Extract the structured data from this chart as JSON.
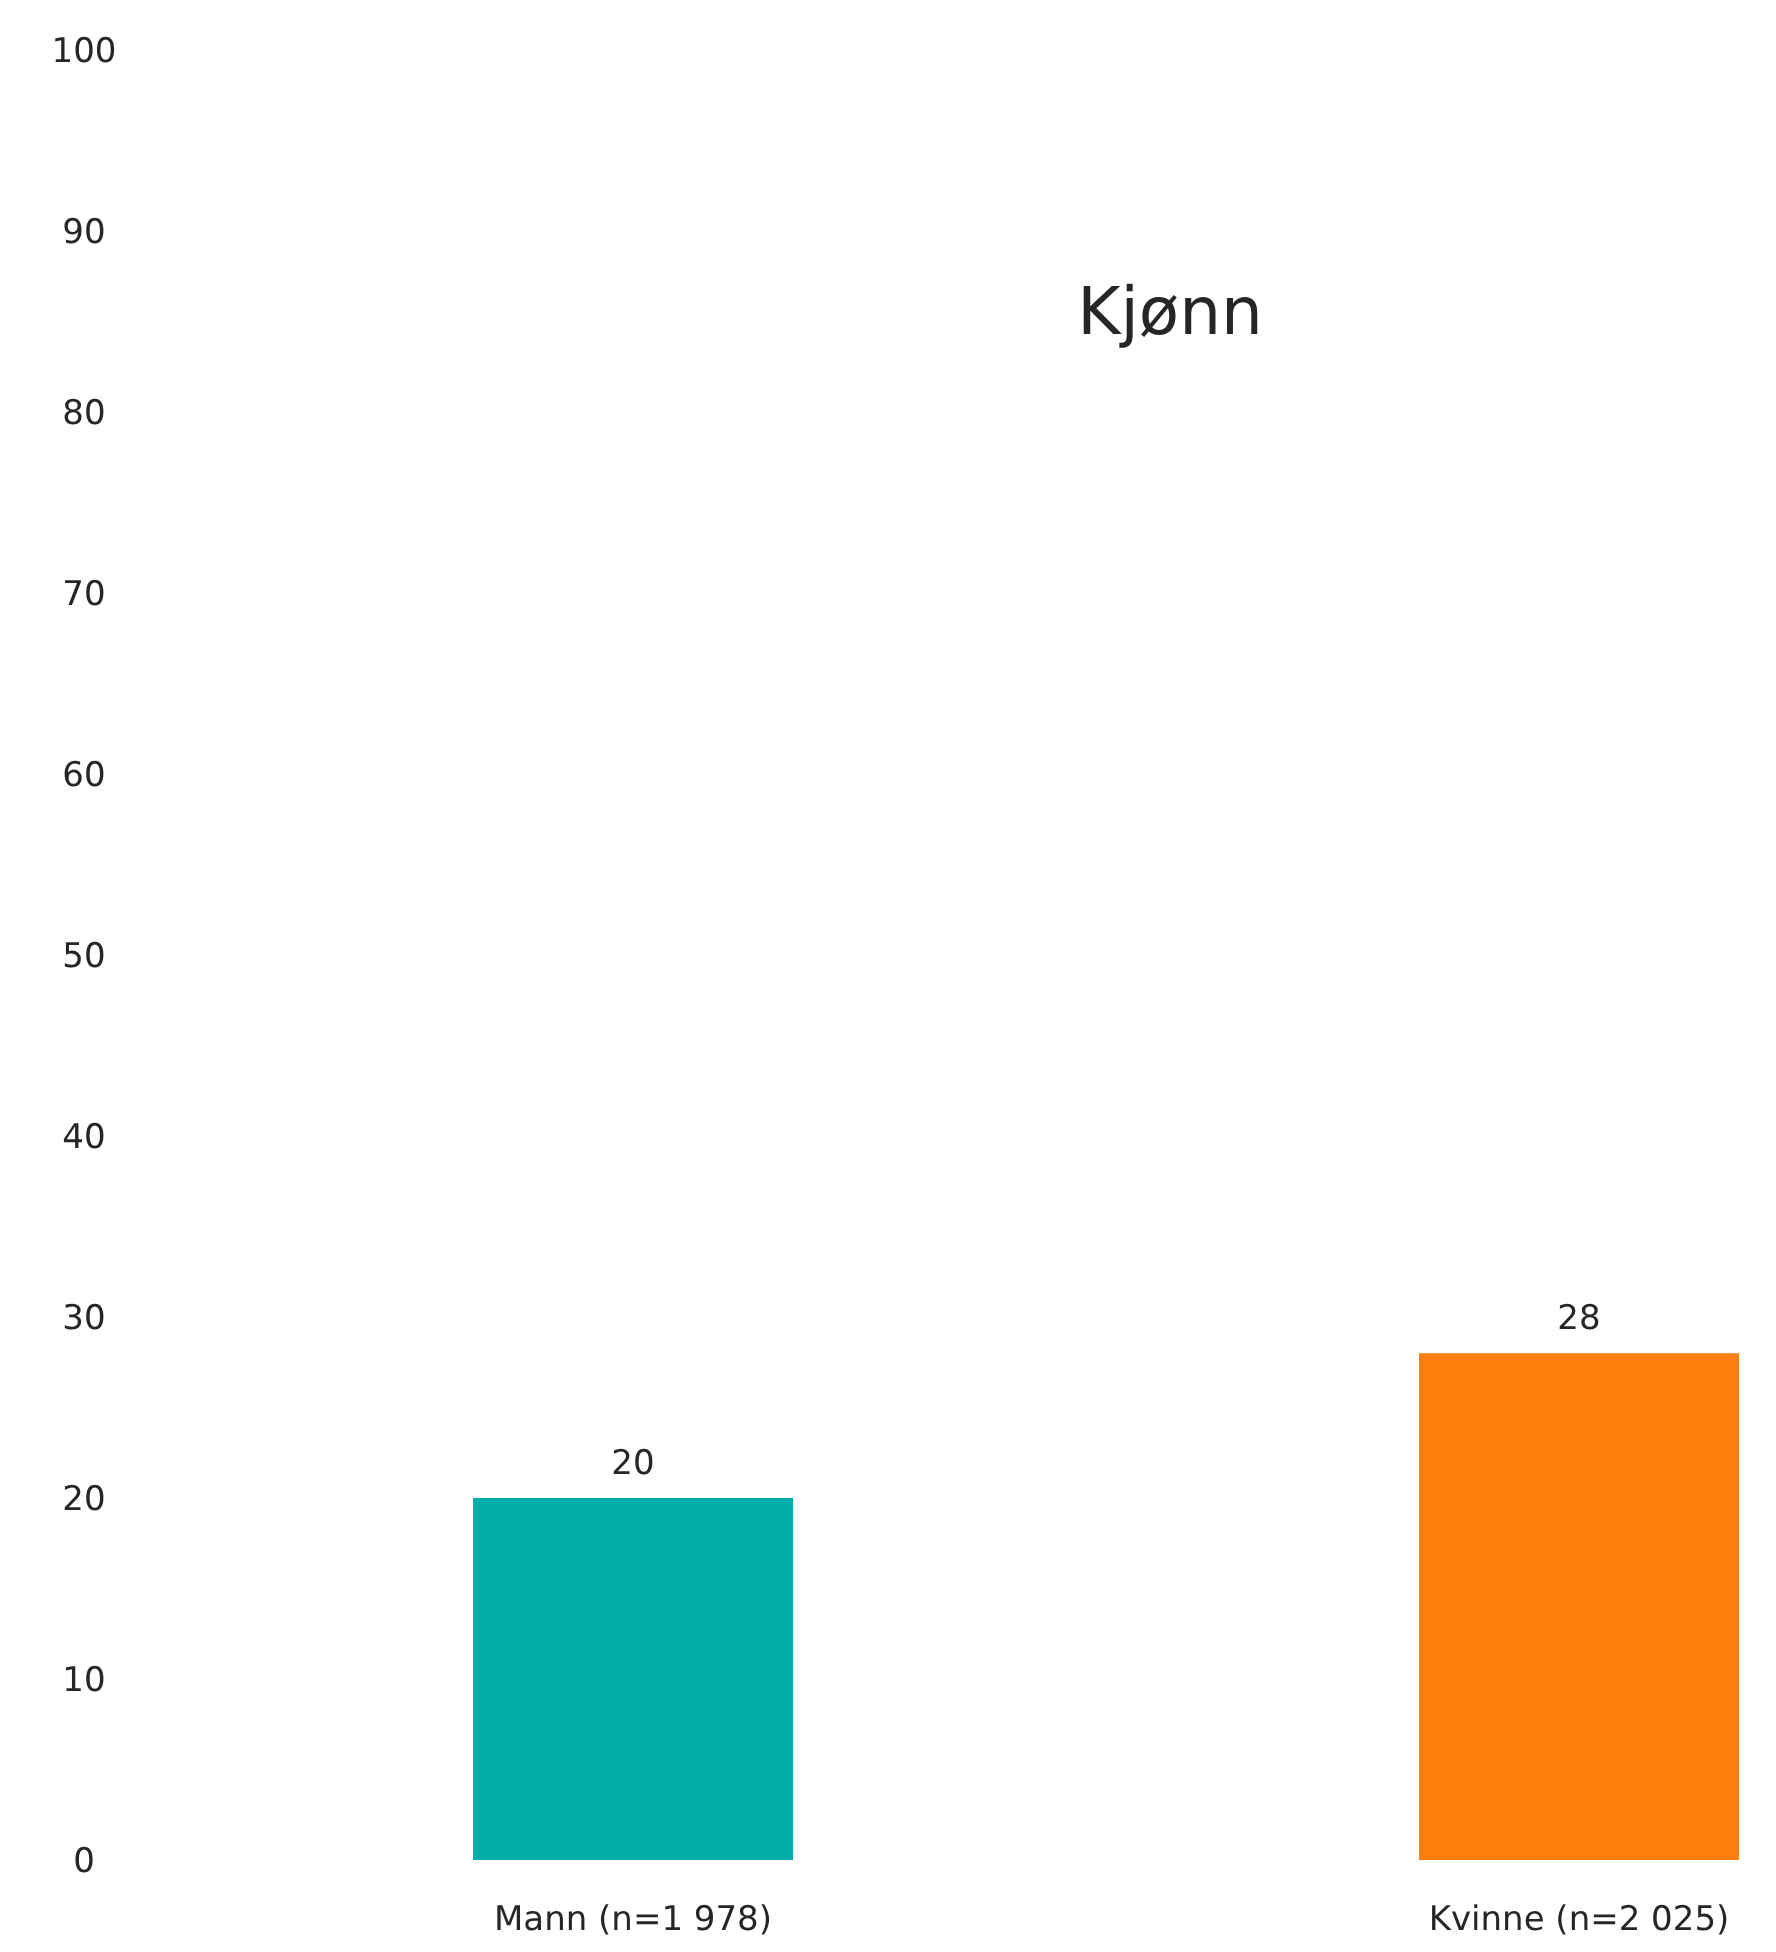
{
  "chart_data": {
    "type": "bar",
    "title": "Kjønn",
    "categories": [
      "Mann (n=1 978)",
      "Kvinne (n=2 025)"
    ],
    "values": [
      20,
      28
    ],
    "colors": [
      "#00ada9",
      "#ff7f0e"
    ],
    "ylim": [
      0,
      100
    ],
    "yticks": [
      0,
      10,
      20,
      30,
      40,
      50,
      60,
      70,
      80,
      90,
      100
    ],
    "data_labels": true
  }
}
